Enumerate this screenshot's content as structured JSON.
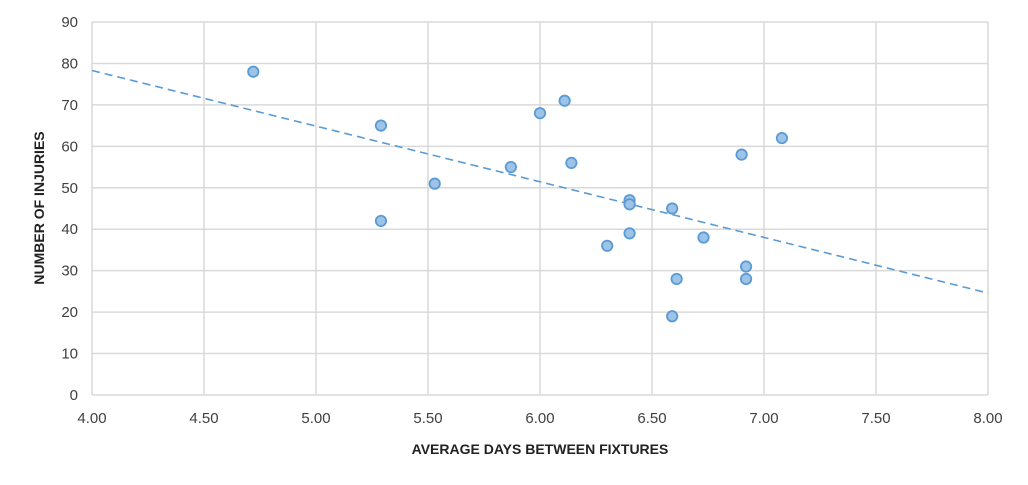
{
  "chart_data": {
    "type": "scatter",
    "title": "",
    "xlabel": "AVERAGE DAYS BETWEEN FIXTURES",
    "ylabel": "NUMBER OF INJURIES",
    "xlim": [
      4.0,
      8.0
    ],
    "ylim": [
      0,
      90
    ],
    "x_ticks": [
      "4.00",
      "4.50",
      "5.00",
      "5.50",
      "6.00",
      "6.50",
      "7.00",
      "7.50",
      "8.00"
    ],
    "y_ticks": [
      "0",
      "10",
      "20",
      "30",
      "40",
      "50",
      "60",
      "70",
      "80",
      "90"
    ],
    "grid": true,
    "legend": "none",
    "series": [
      {
        "points": [
          {
            "x": 4.72,
            "y": 78
          },
          {
            "x": 5.29,
            "y": 65
          },
          {
            "x": 5.29,
            "y": 42
          },
          {
            "x": 5.53,
            "y": 51
          },
          {
            "x": 5.87,
            "y": 55
          },
          {
            "x": 6.0,
            "y": 68
          },
          {
            "x": 6.11,
            "y": 71
          },
          {
            "x": 6.14,
            "y": 56
          },
          {
            "x": 6.3,
            "y": 36
          },
          {
            "x": 6.4,
            "y": 47
          },
          {
            "x": 6.4,
            "y": 46
          },
          {
            "x": 6.4,
            "y": 39
          },
          {
            "x": 6.59,
            "y": 45
          },
          {
            "x": 6.59,
            "y": 19
          },
          {
            "x": 6.61,
            "y": 28
          },
          {
            "x": 6.73,
            "y": 38
          },
          {
            "x": 6.9,
            "y": 58
          },
          {
            "x": 6.92,
            "y": 31
          },
          {
            "x": 6.92,
            "y": 28
          },
          {
            "x": 7.08,
            "y": 62
          }
        ]
      }
    ],
    "trendline": {
      "type": "linear",
      "x": [
        4.0,
        8.0
      ],
      "y": [
        78.3,
        24.6
      ]
    },
    "colors": {
      "marker_fill": "#9dc3e6",
      "marker_stroke": "#5b9bd5",
      "trendline": "#5b9bd5",
      "grid": "#d9d9d9"
    }
  }
}
